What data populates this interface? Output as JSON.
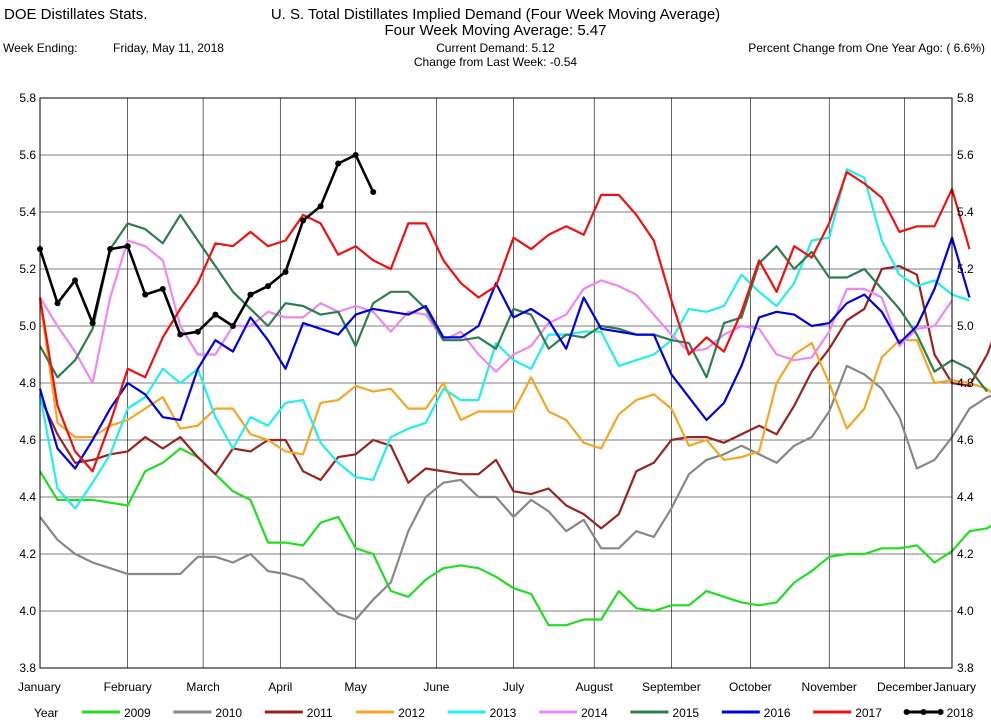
{
  "header": {
    "app_title": "DOE Distillates Stats.",
    "title": "U. S. Total Distillates Implied Demand  (Four Week Moving Average)",
    "subtitle": "Four Week Moving Average:  5.47",
    "week_ending_label": "Week Ending:",
    "week_ending_date": "Friday, May 11, 2018",
    "current_demand": "Current Demand:  5.12",
    "change_last_week": "Change from Last Week: -0.54",
    "percent_change": "Percent Change from One Year Ago: ( 6.6%)"
  },
  "chart_data": {
    "type": "line",
    "title": "U. S. Total Distillates Implied Demand  (Four Week Moving Average)",
    "ylim": [
      3.8,
      5.8
    ],
    "yticks": [
      "3.8",
      "4.0",
      "4.2",
      "4.4",
      "4.6",
      "4.8",
      "5.0",
      "5.2",
      "5.4",
      "5.6",
      "5.8"
    ],
    "xlim": [
      1,
      53
    ],
    "x_ticks": [
      {
        "label": "January",
        "week": 1
      },
      {
        "label": "February",
        "week": 6
      },
      {
        "label": "March",
        "week": 10.3
      },
      {
        "label": "April",
        "week": 14.7
      },
      {
        "label": "May",
        "week": 19
      },
      {
        "label": "June",
        "week": 23.6
      },
      {
        "label": "July",
        "week": 28
      },
      {
        "label": "August",
        "week": 32.6
      },
      {
        "label": "September",
        "week": 37
      },
      {
        "label": "October",
        "week": 41.5
      },
      {
        "label": "November",
        "week": 46
      },
      {
        "label": "December",
        "week": 50.3
      },
      {
        "label": "January",
        "week": 53
      }
    ],
    "legend_title": "Year",
    "legend_position": "bottom",
    "grid": true,
    "series": [
      {
        "name": "2009",
        "color": "#22dd22",
        "values": [
          4.49,
          4.39,
          4.39,
          4.39,
          4.38,
          4.37,
          4.49,
          4.52,
          4.57,
          4.54,
          4.48,
          4.42,
          4.39,
          4.24,
          4.24,
          4.23,
          4.31,
          4.33,
          4.22,
          4.2,
          4.07,
          4.05,
          4.11,
          4.15,
          4.16,
          4.15,
          4.12,
          4.08,
          4.06,
          3.95,
          3.95,
          3.97,
          3.97,
          4.07,
          4.01,
          4.0,
          4.02,
          4.02,
          4.07,
          4.05,
          4.03,
          4.02,
          4.03,
          4.1,
          4.14,
          4.19,
          4.2,
          4.2,
          4.22,
          4.22,
          4.23,
          4.17,
          4.21,
          4.28,
          4.29,
          4.33
        ]
      },
      {
        "name": "2010",
        "color": "#888888",
        "values": [
          4.33,
          4.25,
          4.2,
          4.17,
          4.15,
          4.13,
          4.13,
          4.13,
          4.13,
          4.19,
          4.19,
          4.17,
          4.2,
          4.14,
          4.13,
          4.11,
          4.05,
          3.99,
          3.97,
          4.04,
          4.1,
          4.28,
          4.4,
          4.45,
          4.46,
          4.4,
          4.4,
          4.33,
          4.39,
          4.35,
          4.28,
          4.32,
          4.22,
          4.22,
          4.28,
          4.26,
          4.36,
          4.48,
          4.53,
          4.55,
          4.58,
          4.55,
          4.52,
          4.58,
          4.61,
          4.7,
          4.86,
          4.83,
          4.78,
          4.68,
          4.5,
          4.53,
          4.61,
          4.71,
          4.75,
          4.77
        ]
      },
      {
        "name": "2011",
        "color": "#992222",
        "values": [
          4.75,
          4.62,
          4.52,
          4.53,
          4.55,
          4.56,
          4.61,
          4.57,
          4.61,
          4.54,
          4.48,
          4.57,
          4.56,
          4.6,
          4.6,
          4.49,
          4.46,
          4.54,
          4.55,
          4.6,
          4.58,
          4.45,
          4.5,
          4.49,
          4.48,
          4.48,
          4.53,
          4.42,
          4.41,
          4.43,
          4.37,
          4.34,
          4.29,
          4.34,
          4.49,
          4.52,
          4.6,
          4.61,
          4.61,
          4.59,
          4.62,
          4.65,
          4.62,
          4.72,
          4.84,
          4.92,
          5.02,
          5.06,
          5.2,
          5.21,
          5.18,
          4.9,
          4.8,
          4.79,
          4.9,
          5.06,
          4.99
        ]
      },
      {
        "name": "2012",
        "color": "#f5a623",
        "values": [
          5.09,
          4.66,
          4.61,
          4.61,
          4.65,
          4.67,
          4.71,
          4.75,
          4.64,
          4.65,
          4.71,
          4.71,
          4.62,
          4.6,
          4.56,
          4.55,
          4.73,
          4.74,
          4.79,
          4.77,
          4.78,
          4.71,
          4.71,
          4.8,
          4.67,
          4.7,
          4.7,
          4.7,
          4.82,
          4.7,
          4.67,
          4.59,
          4.57,
          4.69,
          4.74,
          4.76,
          4.71,
          4.58,
          4.6,
          4.53,
          4.54,
          4.56,
          4.8,
          4.9,
          4.94,
          4.8,
          4.64,
          4.71,
          4.89,
          4.95,
          4.95,
          4.8,
          4.81,
          4.8,
          4.78,
          4.72
        ]
      },
      {
        "name": "2013",
        "color": "#22eeee",
        "values": [
          4.76,
          4.43,
          4.36,
          4.45,
          4.55,
          4.71,
          4.75,
          4.85,
          4.8,
          4.85,
          4.68,
          4.57,
          4.68,
          4.65,
          4.73,
          4.74,
          4.59,
          4.52,
          4.47,
          4.46,
          4.61,
          4.64,
          4.66,
          4.78,
          4.74,
          4.74,
          4.94,
          4.88,
          4.85,
          4.97,
          4.97,
          4.98,
          4.98,
          4.86,
          4.88,
          4.9,
          4.95,
          5.06,
          5.05,
          5.07,
          5.18,
          5.12,
          5.07,
          5.15,
          5.3,
          5.31,
          5.55,
          5.52,
          5.3,
          5.18,
          5.14,
          5.16,
          5.11,
          5.09
        ]
      },
      {
        "name": "2014",
        "color": "#ee88ee",
        "values": [
          5.1,
          5.0,
          4.91,
          4.8,
          5.1,
          5.3,
          5.28,
          5.23,
          5.0,
          4.9,
          4.9,
          5.0,
          5.0,
          5.05,
          5.03,
          5.03,
          5.08,
          5.05,
          5.07,
          5.05,
          4.98,
          5.05,
          5.04,
          4.95,
          4.98,
          4.9,
          4.84,
          4.9,
          4.93,
          5.01,
          5.04,
          5.13,
          5.16,
          5.14,
          5.11,
          5.04,
          4.97,
          4.91,
          4.92,
          4.97,
          5.0,
          4.99,
          4.9,
          4.88,
          4.89,
          4.98,
          5.13,
          5.13,
          5.1,
          4.93,
          4.99,
          5.0,
          5.09
        ]
      },
      {
        "name": "2015",
        "color": "#2e7d4f",
        "values": [
          4.93,
          4.82,
          4.88,
          4.99,
          5.27,
          5.36,
          5.34,
          5.29,
          5.39,
          5.3,
          5.21,
          5.12,
          5.06,
          5.0,
          5.08,
          5.07,
          5.04,
          5.05,
          4.93,
          5.08,
          5.12,
          5.12,
          5.06,
          4.95,
          4.95,
          4.96,
          4.92,
          5.06,
          5.04,
          4.92,
          4.97,
          4.96,
          5.0,
          4.99,
          4.97,
          4.97,
          4.95,
          4.94,
          4.82,
          5.01,
          5.03,
          5.22,
          5.28,
          5.2,
          5.26,
          5.17,
          5.17,
          5.2,
          5.13,
          5.06,
          4.97,
          4.84,
          4.88,
          4.85,
          4.77
        ]
      },
      {
        "name": "2016",
        "color": "#0000dd",
        "values": [
          4.78,
          4.57,
          4.5,
          4.6,
          4.71,
          4.8,
          4.76,
          4.68,
          4.67,
          4.85,
          4.95,
          4.91,
          5.03,
          4.95,
          4.85,
          5.01,
          4.99,
          4.97,
          5.04,
          5.06,
          5.05,
          5.04,
          5.07,
          4.96,
          4.96,
          5.0,
          5.15,
          5.03,
          5.06,
          5.02,
          4.92,
          5.1,
          4.99,
          4.98,
          4.97,
          4.97,
          4.83,
          4.75,
          4.67,
          4.73,
          4.86,
          5.03,
          5.05,
          5.04,
          5.0,
          5.01,
          5.08,
          5.11,
          5.05,
          4.94,
          5.0,
          5.13,
          5.31,
          5.1
        ]
      },
      {
        "name": "2017",
        "color": "#ee1111",
        "values": [
          5.1,
          4.72,
          4.56,
          4.49,
          4.66,
          4.85,
          4.82,
          4.96,
          5.06,
          5.15,
          5.29,
          5.28,
          5.33,
          5.28,
          5.3,
          5.39,
          5.36,
          5.25,
          5.28,
          5.23,
          5.2,
          5.36,
          5.36,
          5.23,
          5.15,
          5.1,
          5.14,
          5.31,
          5.27,
          5.32,
          5.35,
          5.32,
          5.46,
          5.46,
          5.39,
          5.3,
          5.09,
          4.9,
          4.96,
          4.91,
          5.05,
          5.23,
          5.12,
          5.28,
          5.24,
          5.36,
          5.54,
          5.5,
          5.45,
          5.33,
          5.35,
          5.35,
          5.48,
          5.27
        ]
      },
      {
        "name": "2018",
        "color": "#000000",
        "values": [
          5.27,
          5.08,
          5.16,
          5.01,
          5.27,
          5.28,
          5.11,
          5.13,
          4.97,
          4.98,
          5.04,
          5.0,
          5.11,
          5.14,
          5.19,
          5.37,
          5.42,
          5.57,
          5.6,
          5.47
        ]
      }
    ]
  }
}
